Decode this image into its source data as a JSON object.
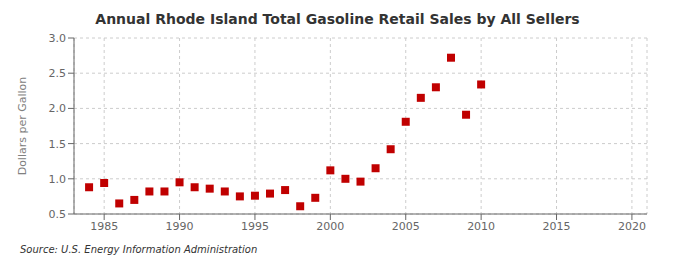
{
  "chart_data": {
    "type": "scatter",
    "title": "Annual Rhode Island Total Gasoline Retail Sales by All Sellers",
    "ylabel": "Dollars per Gallon",
    "source": "Source: U.S. Energy Information Administration",
    "x": [
      1984,
      1985,
      1986,
      1987,
      1988,
      1989,
      1990,
      1991,
      1992,
      1993,
      1994,
      1995,
      1996,
      1997,
      1998,
      1999,
      2000,
      2001,
      2002,
      2003,
      2004,
      2005,
      2006,
      2007,
      2008,
      2009,
      2010
    ],
    "values": [
      0.88,
      0.94,
      0.65,
      0.7,
      0.82,
      0.82,
      0.95,
      0.88,
      0.86,
      0.82,
      0.75,
      0.76,
      0.79,
      0.84,
      0.61,
      0.73,
      1.12,
      1.0,
      0.96,
      1.15,
      1.42,
      1.81,
      2.15,
      2.3,
      2.72,
      1.91,
      2.34
    ],
    "color": "#c00000",
    "marker": "square",
    "xlim": [
      1983,
      2021
    ],
    "ylim": [
      0.5,
      3.0
    ],
    "xticks": [
      1985,
      1990,
      1995,
      2000,
      2005,
      2010,
      2015,
      2020
    ],
    "yticks": [
      0.5,
      {
        "value": 1,
        "label": "1.0"
      },
      1.5,
      {
        "value": 2,
        "label": "2.0"
      },
      2.5,
      {
        "value": 3,
        "label": "3.0"
      }
    ],
    "grid": true
  }
}
